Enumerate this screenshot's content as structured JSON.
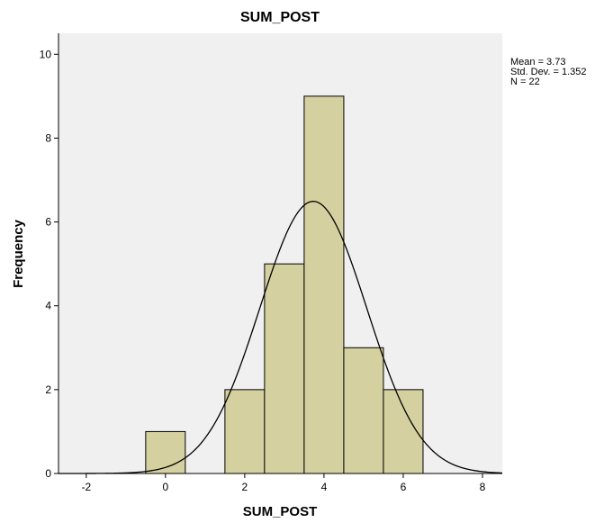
{
  "chart_data": {
    "type": "histogram",
    "title": "SUM_POST",
    "xlabel": "SUM_POST",
    "ylabel": "Frequency",
    "xlim": [
      -2.7,
      8.5
    ],
    "ylim": [
      0,
      10.5
    ],
    "x_ticks": [
      -2,
      0,
      2,
      4,
      6,
      8
    ],
    "y_ticks": [
      0,
      2,
      4,
      6,
      8,
      10
    ],
    "bin_width": 1,
    "bins": [
      {
        "start": -0.5,
        "end": 0.5,
        "count": 1
      },
      {
        "start": 1.5,
        "end": 2.5,
        "count": 2
      },
      {
        "start": 2.5,
        "end": 3.5,
        "count": 5
      },
      {
        "start": 3.5,
        "end": 4.5,
        "count": 9
      },
      {
        "start": 4.5,
        "end": 5.5,
        "count": 3
      },
      {
        "start": 5.5,
        "end": 6.5,
        "count": 2
      }
    ],
    "normal_curve": {
      "mean": 3.73,
      "std_dev": 1.352,
      "n": 22
    },
    "stats_lines": [
      "Mean = 3.73",
      "Std. Dev. = 1.352",
      "N = 22"
    ],
    "grid": false,
    "legend": "none",
    "colors": {
      "bar_fill": "#d4d0a0",
      "bar_stroke": "#000000",
      "plot_background": "#f0f0f0",
      "curve": "#000000"
    }
  }
}
